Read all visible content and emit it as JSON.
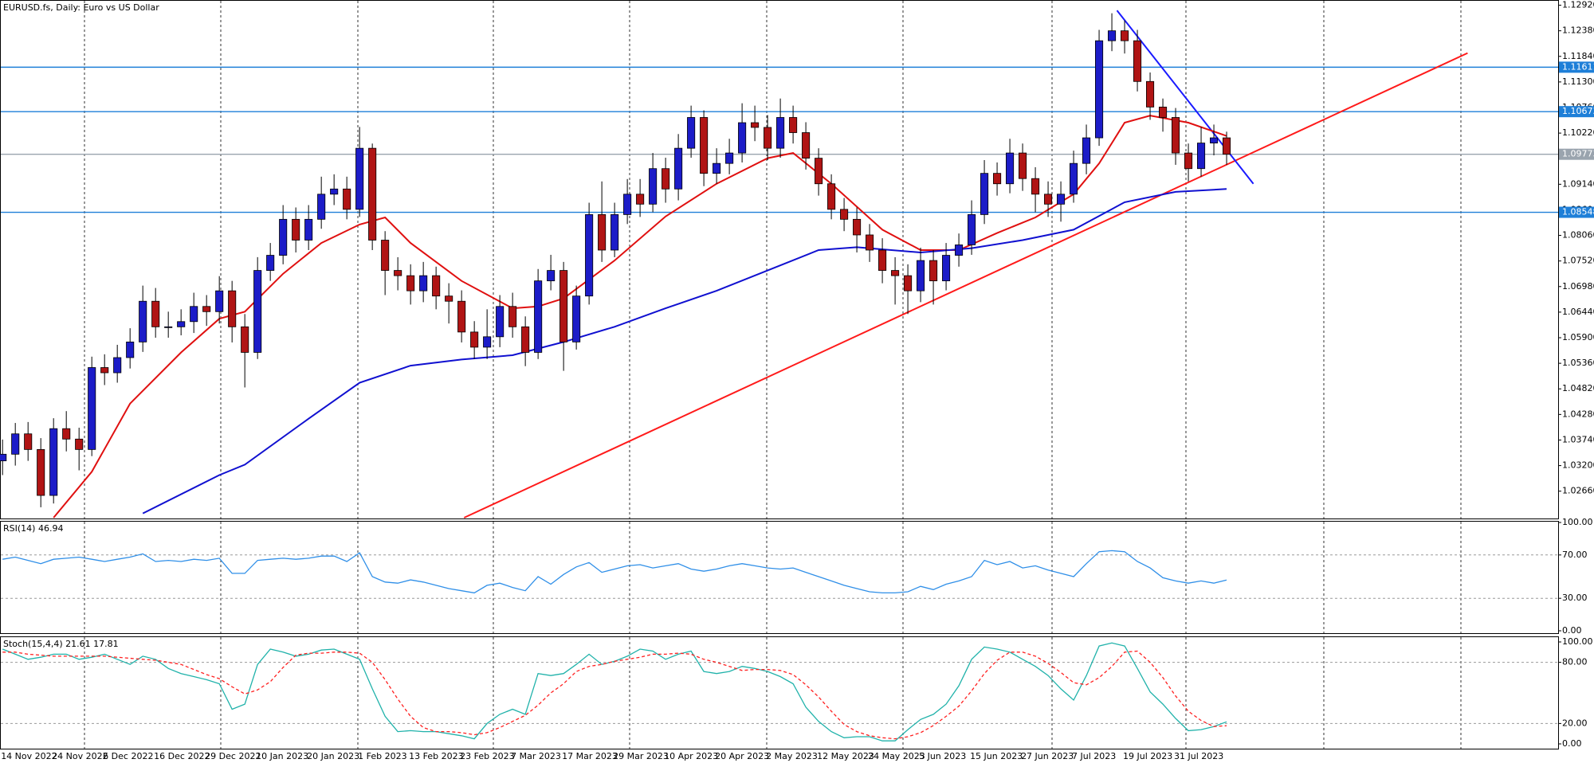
{
  "chart_data": [
    {
      "type": "candlestick",
      "title": "EURUSD.fs, Daily:  Euro vs US Dollar",
      "categories": [
        "14 Nov 2022",
        null,
        null,
        null,
        "24 Nov 2022",
        null,
        null,
        null,
        "6 Dec 2022",
        null,
        null,
        null,
        "16 Dec 2022",
        null,
        null,
        null,
        "29 Dec 2022",
        null,
        null,
        null,
        "10 Jan 2023",
        null,
        null,
        null,
        "20 Jan 2023",
        null,
        null,
        null,
        "1 Feb 2023",
        null,
        null,
        null,
        "13 Feb 2023",
        null,
        null,
        null,
        "23 Feb 2023",
        null,
        null,
        null,
        "7 Mar 2023",
        null,
        null,
        null,
        "17 Mar 2023",
        null,
        null,
        null,
        "29 Mar 2023",
        null,
        null,
        null,
        "10 Apr 2023",
        null,
        null,
        null,
        "20 Apr 2023",
        null,
        null,
        null,
        "2 May 2023",
        null,
        null,
        null,
        "12 May 2023",
        null,
        null,
        null,
        "24 May 2023",
        null,
        null,
        null,
        "5 Jun 2023",
        null,
        null,
        null,
        "15 Jun 2023",
        null,
        null,
        null,
        "27 Jun 2023",
        null,
        null,
        null,
        "7 Jul 2023",
        null,
        null,
        null,
        "19 Jul 2023",
        null,
        null,
        null,
        "31 Jul 2023",
        null,
        null,
        null,
        null
      ],
      "open": [
        1.033,
        1.0344,
        1.0387,
        1.0354,
        1.0257,
        1.0398,
        1.0376,
        1.0354,
        1.0527,
        1.0516,
        1.0548,
        1.0581,
        1.0667,
        1.0613,
        1.0613,
        1.0624,
        1.0656,
        1.0645,
        1.0689,
        1.0613,
        1.0559,
        1.0732,
        1.0764,
        1.084,
        1.0796,
        1.084,
        1.0893,
        1.0904,
        1.0861,
        1.099,
        1.0796,
        1.0732,
        1.0721,
        1.0689,
        1.0721,
        1.0678,
        1.0667,
        1.0602,
        1.057,
        1.0592,
        1.0656,
        1.0613,
        1.0559,
        1.071,
        1.0732,
        1.0581,
        1.0678,
        1.085,
        1.0775,
        1.085,
        1.0893,
        1.0872,
        1.0947,
        1.0904,
        1.099,
        1.1055,
        1.0937,
        1.0958,
        1.098,
        1.1044,
        1.1034,
        1.099,
        1.1055,
        1.1023,
        1.0969,
        1.0915,
        1.0861,
        1.084,
        1.0807,
        1.0775,
        1.0732,
        1.0721,
        1.0689,
        1.0753,
        1.071,
        1.0764,
        1.0786,
        1.085,
        1.0937,
        1.0915,
        1.098,
        1.0926,
        1.0893,
        1.0872,
        1.0893,
        1.0958,
        1.1012,
        1.1217,
        1.1238,
        1.1217,
        1.1131,
        1.1077,
        1.1055,
        1.098,
        1.0947,
        1.1001,
        1.1012
      ],
      "high": [
        1.0375,
        1.041,
        1.0412,
        1.0378,
        1.042,
        1.0435,
        1.04,
        1.055,
        1.0555,
        1.0575,
        1.061,
        1.07,
        1.0695,
        1.0645,
        1.065,
        1.0685,
        1.068,
        1.072,
        1.071,
        1.064,
        1.076,
        1.079,
        1.087,
        1.0865,
        1.087,
        1.093,
        1.0935,
        1.093,
        1.1035,
        1.1,
        1.0815,
        1.076,
        1.0745,
        1.075,
        1.074,
        1.0705,
        1.069,
        1.0625,
        1.065,
        1.068,
        1.0685,
        1.0635,
        1.0735,
        1.0765,
        1.075,
        1.07,
        1.0875,
        1.092,
        1.0875,
        1.0925,
        1.0925,
        1.098,
        1.097,
        1.102,
        1.108,
        1.107,
        1.099,
        1.101,
        1.1085,
        1.108,
        1.106,
        1.1095,
        1.108,
        1.1045,
        1.099,
        1.0935,
        1.0885,
        1.0865,
        1.083,
        1.08,
        1.076,
        1.0745,
        1.078,
        1.0775,
        1.079,
        1.081,
        1.088,
        1.0965,
        1.096,
        1.101,
        1.1,
        1.095,
        1.092,
        1.092,
        1.0985,
        1.104,
        1.124,
        1.1275,
        1.126,
        1.124,
        1.115,
        1.1095,
        1.1075,
        1.1,
        1.1035,
        1.104,
        1.1025
      ],
      "low": [
        1.03,
        1.032,
        1.033,
        1.0232,
        1.024,
        1.035,
        1.031,
        1.034,
        1.049,
        1.0495,
        1.0525,
        1.056,
        1.059,
        1.059,
        1.0595,
        1.06,
        1.0615,
        1.062,
        1.058,
        1.0485,
        1.0545,
        1.071,
        1.0745,
        1.077,
        1.0775,
        1.082,
        1.087,
        1.084,
        1.0845,
        1.0775,
        1.068,
        1.069,
        1.066,
        1.0665,
        1.065,
        1.062,
        1.058,
        1.0545,
        1.0545,
        1.057,
        1.059,
        1.053,
        1.0545,
        1.069,
        1.052,
        1.0565,
        1.066,
        1.075,
        1.076,
        1.083,
        1.0845,
        1.0855,
        1.0875,
        1.088,
        1.097,
        1.091,
        1.0915,
        1.0935,
        1.096,
        1.1005,
        1.0965,
        1.097,
        1.1,
        1.0945,
        1.089,
        1.084,
        1.0815,
        1.077,
        1.075,
        1.0705,
        1.066,
        1.064,
        1.0665,
        1.066,
        1.069,
        1.074,
        1.0765,
        1.083,
        1.089,
        1.0895,
        1.09,
        1.0855,
        1.0845,
        1.0835,
        1.0875,
        1.0935,
        1.0995,
        1.1195,
        1.119,
        1.111,
        1.105,
        1.1025,
        1.0955,
        1.092,
        1.093,
        1.0975,
        1.0955
      ],
      "close": [
        1.0344,
        1.0387,
        1.0354,
        1.0257,
        1.0398,
        1.0376,
        1.0354,
        1.0527,
        1.0516,
        1.0548,
        1.0581,
        1.0667,
        1.0613,
        1.0613,
        1.0624,
        1.0656,
        1.0645,
        1.0689,
        1.0613,
        1.0559,
        1.0732,
        1.0764,
        1.084,
        1.0796,
        1.084,
        1.0893,
        1.0904,
        1.0861,
        1.099,
        1.0796,
        1.0732,
        1.0721,
        1.0689,
        1.0721,
        1.0678,
        1.0667,
        1.0602,
        1.057,
        1.0592,
        1.0656,
        1.0613,
        1.0559,
        1.071,
        1.0732,
        1.0581,
        1.0678,
        1.085,
        1.0775,
        1.085,
        1.0893,
        1.0872,
        1.0947,
        1.0904,
        1.099,
        1.1055,
        1.0937,
        1.0958,
        1.098,
        1.1044,
        1.1034,
        1.099,
        1.1055,
        1.1023,
        1.0969,
        1.0915,
        1.0861,
        1.084,
        1.0807,
        1.0775,
        1.0732,
        1.0721,
        1.0689,
        1.0753,
        1.071,
        1.0764,
        1.0786,
        1.085,
        1.0937,
        1.0915,
        1.098,
        1.0926,
        1.0893,
        1.0872,
        1.0893,
        1.0958,
        1.1012,
        1.1217,
        1.1238,
        1.1217,
        1.1131,
        1.1077,
        1.1055,
        1.098,
        1.0947,
        1.1001,
        1.1012,
        1.09773
      ],
      "up_color": "#1c1cc8",
      "down_color": "#b01414",
      "xlim": [
        -0.2,
        122
      ],
      "ylim": [
        1.021,
        1.1303
      ],
      "yticks": [
        {
          "value": 1.1292,
          "label": "1.12920"
        },
        {
          "value": 1.1238,
          "label": "1.12380"
        },
        {
          "value": 1.1184,
          "label": "1.11840"
        },
        {
          "value": 1.113,
          "label": "1.11300"
        },
        {
          "value": 1.1076,
          "label": "1.10760"
        },
        {
          "value": 1.1022,
          "label": "1.10220"
        },
        {
          "value": 1.0914,
          "label": "1.09140"
        },
        {
          "value": 1.086,
          "label": "1.08600"
        },
        {
          "value": 1.0806,
          "label": "1.08060"
        },
        {
          "value": 1.0752,
          "label": "1.07520"
        },
        {
          "value": 1.0698,
          "label": "1.06980"
        },
        {
          "value": 1.0644,
          "label": "1.06440"
        },
        {
          "value": 1.059,
          "label": "1.05900"
        },
        {
          "value": 1.0536,
          "label": "1.05360"
        },
        {
          "value": 1.0482,
          "label": "1.04820"
        },
        {
          "value": 1.0428,
          "label": "1.04280"
        },
        {
          "value": 1.0374,
          "label": "1.03740"
        },
        {
          "value": 1.032,
          "label": "1.03200"
        },
        {
          "value": 1.0266,
          "label": "1.02660"
        }
      ],
      "moving_averages": [
        {
          "color": "#e01010",
          "x": [
            4,
            7,
            10,
            14,
            17,
            19,
            22,
            25,
            28,
            30,
            32,
            36,
            40,
            42,
            44,
            48,
            52,
            56,
            60,
            62,
            65,
            69,
            72,
            75,
            78,
            81,
            84,
            86,
            88,
            90,
            93,
            96
          ],
          "values": [
            1.021,
            1.0307,
            1.0451,
            1.0559,
            1.063,
            1.0645,
            1.0725,
            1.079,
            1.0829,
            1.0844,
            1.079,
            1.071,
            1.0652,
            1.0656,
            1.0673,
            1.0753,
            1.0846,
            1.0915,
            1.0969,
            1.098,
            1.0915,
            1.0818,
            1.0775,
            1.0775,
            1.0811,
            1.0844,
            1.0893,
            1.0958,
            1.1044,
            1.1059,
            1.1044,
            1.1016
          ]
        },
        {
          "color": "#1010d0",
          "x": [
            11,
            17,
            19,
            24,
            28,
            32,
            36,
            40,
            44,
            48,
            52,
            56,
            60,
            64,
            67,
            72,
            76,
            80,
            84,
            88,
            92,
            96
          ],
          "values": [
            1.0219,
            1.03,
            1.0322,
            1.0419,
            1.0495,
            1.0531,
            1.0544,
            1.0553,
            1.0581,
            1.0613,
            1.0652,
            1.0689,
            1.0732,
            1.0775,
            1.0781,
            1.077,
            1.0779,
            1.0796,
            1.0818,
            1.0876,
            1.0898,
            1.0904
          ]
        }
      ],
      "trendlines": [
        {
          "color": "#ff1a1a",
          "x": [
            36.2,
            114.9
          ],
          "values": [
            1.021,
            1.1191
          ]
        },
        {
          "color": "#1a1aff",
          "x": [
            87.4,
            98.1
          ],
          "values": [
            1.1281,
            1.0915
          ]
        }
      ],
      "levels": [
        {
          "value": 1.11611,
          "color": "#1e7fd8"
        },
        {
          "value": 1.10673,
          "color": "#1e7fd8"
        },
        {
          "value": 1.09773,
          "color": "#9aa4ae"
        },
        {
          "value": 1.08548,
          "color": "#1e7fd8"
        }
      ]
    },
    {
      "type": "line",
      "title": "RSI(14) 46.94",
      "ylim": [
        0,
        100
      ],
      "yticks": [
        {
          "value": 100,
          "label": "100.00"
        },
        {
          "value": 70,
          "label": "70.00"
        },
        {
          "value": 30,
          "label": "30.00"
        },
        {
          "value": 0,
          "label": "0.00"
        }
      ],
      "grid": true,
      "series": [
        {
          "color": "#2f8fe8",
          "dashed": false,
          "values": [
            66,
            68,
            65,
            62,
            66,
            67,
            68,
            66,
            64,
            66,
            68,
            71,
            64,
            65,
            64,
            66,
            65,
            67,
            53,
            53,
            65,
            66,
            67,
            66,
            67,
            69,
            69,
            64,
            72,
            50,
            45,
            44,
            47,
            45,
            42,
            39,
            37,
            35,
            42,
            44,
            40,
            37,
            50,
            43,
            52,
            59,
            63,
            54,
            57,
            60,
            61,
            58,
            60,
            62,
            57,
            55,
            57,
            60,
            62,
            60,
            58,
            57,
            58,
            54,
            50,
            46,
            42,
            39,
            36,
            35,
            35,
            36,
            41,
            38,
            43,
            46,
            50,
            65,
            61,
            64,
            58,
            60,
            56,
            53,
            50,
            62,
            73,
            74,
            73,
            64,
            58,
            49,
            46,
            44,
            46,
            44,
            46.94
          ]
        }
      ]
    },
    {
      "type": "line",
      "title": "Stoch(15,4,4) 21.61 17.81",
      "ylim": [
        0,
        100
      ],
      "yticks": [
        {
          "value": 100,
          "label": "100.00"
        },
        {
          "value": 80,
          "label": "80.00"
        },
        {
          "value": 20,
          "label": "20.00"
        },
        {
          "value": 0,
          "label": "0.00"
        }
      ],
      "grid": true,
      "series": [
        {
          "color": "#20b2aa",
          "dashed": false,
          "values": [
            93,
            88,
            83,
            85,
            88,
            88,
            83,
            85,
            88,
            83,
            78,
            86,
            83,
            74,
            69,
            66,
            63,
            59,
            34,
            39,
            78,
            93,
            90,
            86,
            88,
            92,
            93,
            88,
            83,
            54,
            27,
            12,
            13,
            12,
            12,
            10,
            8,
            5,
            20,
            29,
            34,
            29,
            69,
            67,
            69,
            78,
            88,
            78,
            81,
            86,
            93,
            91,
            83,
            88,
            91,
            71,
            69,
            71,
            76,
            74,
            71,
            66,
            59,
            36,
            22,
            12,
            6,
            7,
            7,
            3,
            3,
            14,
            24,
            29,
            39,
            57,
            83,
            95,
            93,
            90,
            83,
            76,
            67,
            54,
            43,
            67,
            96,
            99,
            96,
            74,
            51,
            39,
            25,
            13,
            14,
            17,
            21.61
          ]
        },
        {
          "color": "#ff2020",
          "dashed": true,
          "values": [
            90,
            90,
            88,
            87,
            86,
            86,
            86,
            86,
            86,
            85,
            84,
            83,
            82,
            80,
            78,
            73,
            68,
            64,
            56,
            49,
            53,
            61,
            75,
            87,
            89,
            89,
            90,
            90,
            89,
            80,
            63,
            44,
            27,
            16,
            12,
            12,
            11,
            9,
            11,
            16,
            22,
            28,
            38,
            50,
            59,
            71,
            76,
            78,
            81,
            83,
            85,
            88,
            88,
            89,
            88,
            83,
            80,
            76,
            72,
            73,
            73,
            72,
            68,
            58,
            46,
            32,
            19,
            12,
            8,
            6,
            5,
            7,
            11,
            18,
            27,
            37,
            52,
            69,
            82,
            90,
            90,
            86,
            79,
            70,
            60,
            58,
            65,
            76,
            90,
            91,
            80,
            65,
            47,
            32,
            23,
            17,
            17.81
          ]
        }
      ]
    }
  ]
}
